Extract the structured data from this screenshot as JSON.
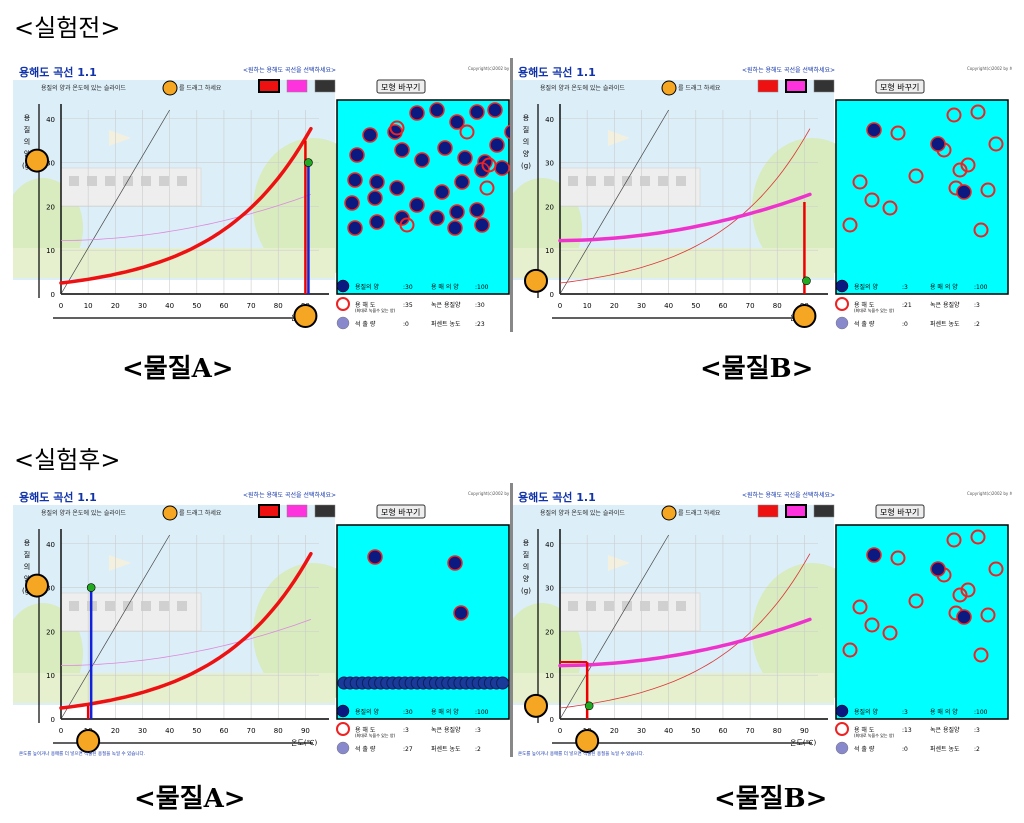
{
  "labels": {
    "before": "<실험전>",
    "after": "<실험후>",
    "substance_a": "<물질A>",
    "substance_b": "<물질B>"
  },
  "common": {
    "app_title": "용해도 곡선 1.1",
    "hint": "용질의 양과 온도에 있는 슬라이드",
    "drag": "를 드래그 하세요",
    "select": "<원하는 용해도 곡선을 선택하세요>",
    "copyright": "Copyright(c)2002 by 최병기",
    "change_button": "모형 바꾸기",
    "y_axis_label": [
      "용",
      "질",
      "의",
      "양",
      "(g)"
    ],
    "x_axis_label": "온도(℃)",
    "x_ticks": [
      "0",
      "10",
      "20",
      "30",
      "40",
      "50",
      "60",
      "70",
      "80",
      "90"
    ],
    "y_ticks": [
      "0",
      "10",
      "20",
      "30",
      "40"
    ],
    "legend_labels": {
      "solute": "용질의 양",
      "solubility": "용 해 도",
      "solubility_note": "(최대로 녹을수 있는 양)",
      "precipitate": "석 출 량",
      "solvent": "용 매 의 양",
      "dissolved": "녹은 용질양",
      "percent": "퍼센트 농도"
    },
    "colors": {
      "red_curve": "#ee1111",
      "magenta_curve": "#ee33cc",
      "tank": "#00ffff",
      "solute_fill": "#0a1a80",
      "ring": "#ee2222",
      "slider": "#f5a623"
    }
  },
  "panels": [
    {
      "name": "before-a",
      "substance": "A",
      "curve": "red",
      "temperature": 90,
      "solute": 30,
      "solvent": 100,
      "solubility": 35,
      "dissolved": 30,
      "precipitate": 0,
      "percent": 23,
      "legend": {
        "solute": ":30",
        "solvent": ":100",
        "solubility": ":35",
        "dissolved": ":30",
        "precipitate": ":0",
        "percent": ":23"
      },
      "footer": ""
    },
    {
      "name": "before-b",
      "substance": "B",
      "curve": "magenta",
      "temperature": 90,
      "solute": 3,
      "solvent": 100,
      "solubility": 21,
      "dissolved": 3,
      "precipitate": 0,
      "percent": 2,
      "legend": {
        "solute": ":3",
        "solvent": ":100",
        "solubility": ":21",
        "dissolved": ":3",
        "precipitate": ":0",
        "percent": ":2"
      },
      "footer": ""
    },
    {
      "name": "after-a",
      "substance": "A",
      "curve": "red",
      "temperature": 10,
      "solute": 30,
      "solvent": 100,
      "solubility": 3,
      "dissolved": 3,
      "precipitate": 27,
      "percent": 2,
      "legend": {
        "solute": ":30",
        "solvent": ":100",
        "solubility": ":3",
        "dissolved": ":3",
        "precipitate": ":27",
        "percent": ":2"
      },
      "footer": "온도를 높이거나 용매를 더 넣으면 석출된 용질을 녹일 수 있습니다."
    },
    {
      "name": "after-b",
      "substance": "B",
      "curve": "magenta",
      "temperature": 10,
      "solute": 3,
      "solvent": 100,
      "solubility": 13,
      "dissolved": 3,
      "precipitate": 0,
      "percent": 2,
      "legend": {
        "solute": ":3",
        "solvent": ":100",
        "solubility": ":13",
        "dissolved": ":3",
        "precipitate": ":0",
        "percent": ":2"
      },
      "footer": "온도를 높이거나 용매를 더 넣으면 석출된 용질을 녹일 수 있습니다."
    }
  ]
}
